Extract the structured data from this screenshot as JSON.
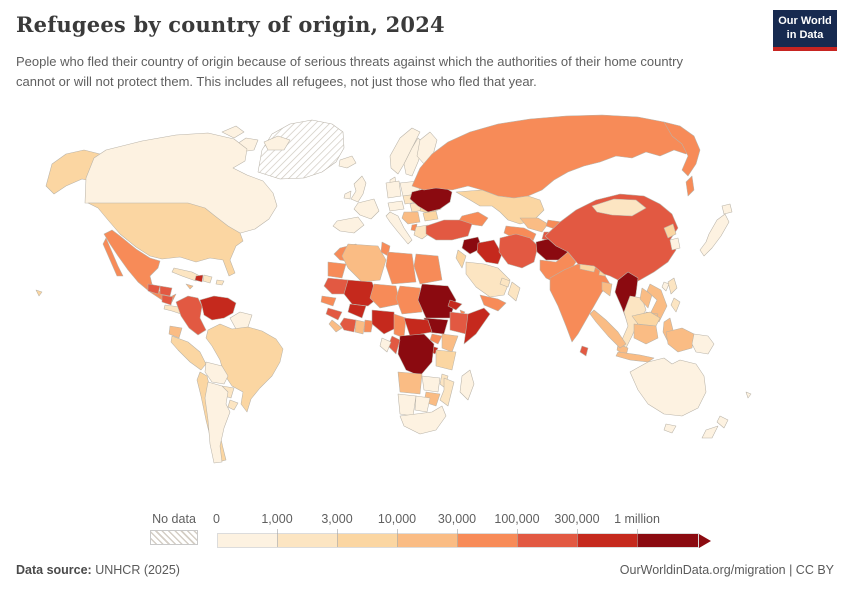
{
  "header": {
    "title": "Refugees by country of origin, 2024",
    "subtitle": "People who fled their country of origin because of serious threats against which the authorities of their home country cannot or will not protect them. This includes all refugees, not just those who fled that year.",
    "logo": {
      "line1": "Our World",
      "line2": "in Data",
      "bg_color": "#172a50",
      "accent_color": "#c72421"
    }
  },
  "footer": {
    "source_label": "Data source:",
    "source_value": " UNHCR (2025)",
    "rights": "OurWorldinData.org/migration | CC BY"
  },
  "chart_data": {
    "type": "heatmap",
    "subtype": "choropleth-world-map",
    "title": "Refugees by country of origin, 2024",
    "unit": "number of refugees",
    "year": "2024",
    "legend": {
      "position": "bottom",
      "no_data_label": "No data",
      "tick_labels": [
        "0",
        "1,000",
        "3,000",
        "10,000",
        "30,000",
        "100,000",
        "300,000",
        "1 million"
      ],
      "bin_ranges": [
        "0–1,000",
        "1,000–3,000",
        "3,000–10,000",
        "10,000–30,000",
        "30,000–100,000",
        "100,000–300,000",
        "300,000–1 million",
        "1 million+"
      ],
      "bin_colors": [
        "#fdf2e1",
        "#fce5c2",
        "#fbd6a2",
        "#fabc84",
        "#f78b58",
        "#e25942",
        "#c5291d",
        "#8b0a10"
      ],
      "open_ended_max": true
    },
    "country_bins": {
      "greenland": "no-data",
      "canada": 0,
      "usa": 2,
      "hawaii": 2,
      "mexico": 4,
      "guatemala": 5,
      "honduras": 5,
      "nicaragua": 5,
      "costa-rica-panama": 1,
      "cuba": 1,
      "jamaica": 3,
      "haiti": 6,
      "dominican-republic": 1,
      "puerto-rico": 1,
      "colombia": 5,
      "venezuela": 6,
      "guyanas": 0,
      "ecuador": 3,
      "peru": 2,
      "brazil": 2,
      "bolivia": 0,
      "paraguay": 1,
      "chile": 2,
      "argentina": 0,
      "uruguay": 1,
      "iceland": 0,
      "norway": 0,
      "sweden": 0,
      "finland": 0,
      "denmark": 0,
      "united-kingdom": 0,
      "ireland": 0,
      "baltics": 1,
      "poland": 0,
      "germany": 0,
      "france": 0,
      "iberia": 0,
      "italy": 0,
      "switzerland-austria": 0,
      "czech-slovakia": 1,
      "hungary": 1,
      "romania": 2,
      "bulgaria": 2,
      "balkans": 3,
      "albania": 4,
      "greece": 1,
      "belarus": 1,
      "moldova": 2,
      "ukraine": 7,
      "russia": 4,
      "kazakhstan": 2,
      "caucasus": 4,
      "turkey": 5,
      "syria": 7,
      "levant": 2,
      "iraq": 6,
      "saudi-arabia": 1,
      "yemen": 4,
      "oman": 1,
      "gulf-states": 1,
      "iran": 5,
      "turkmenistan": 4,
      "uzbekistan": 3,
      "kyrgyzstan": 4,
      "tajikistan": 5,
      "afghanistan": 7,
      "pakistan": 4,
      "india": 4,
      "nepal": 2,
      "bhutan": 2,
      "bangladesh": 3,
      "sri-lanka": 5,
      "china": 5,
      "mongolia": 1,
      "north-korea": 2,
      "south-korea": 0,
      "japan": 0,
      "taiwan": 0,
      "myanmar": 7,
      "thailand": 1,
      "laos": 3,
      "vietnam": 3,
      "cambodia": 3,
      "malaysia": 3,
      "borneo-malaysia": 2,
      "indonesia": 3,
      "philippines": 1,
      "papua-new-guinea": 0,
      "fiji": 0,
      "morocco": 4,
      "western-sahara": 4,
      "algeria": 3,
      "tunisia": 4,
      "libya": 4,
      "egypt": 4,
      "mauritania": 5,
      "mali": 6,
      "senegal": 4,
      "guinea": 5,
      "sierra-leone-liberia": 3,
      "ivory-coast": 5,
      "ghana": 3,
      "togo-benin": 4,
      "burkina-faso": 6,
      "niger": 4,
      "chad": 4,
      "nigeria": 6,
      "cameroon": 4,
      "central-african-republic": 6,
      "sudan": 7,
      "south-sudan": 7,
      "eritrea": 6,
      "djibouti": 4,
      "ethiopia": 5,
      "somalia": 6,
      "uganda": 4,
      "kenya": 3,
      "rwanda-burundi": 6,
      "dr-congo": 7,
      "congo": 5,
      "gabon": 0,
      "tanzania": 2,
      "angola": 3,
      "zambia": 0,
      "malawi": 1,
      "mozambique": 1,
      "zimbabwe": 3,
      "namibia": 0,
      "botswana": 0,
      "south-africa": 0,
      "madagascar": 0,
      "australia": 0,
      "new-zealand": 0
    }
  }
}
